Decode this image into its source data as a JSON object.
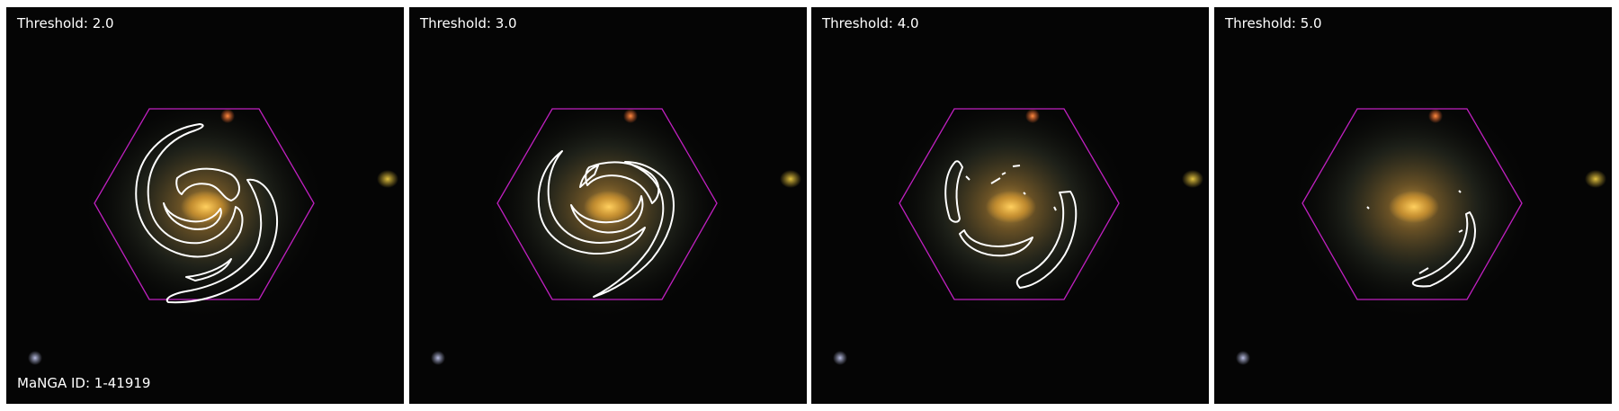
{
  "figure": {
    "manga_id_label": "MaNGA ID: 1-41919",
    "panels": [
      {
        "threshold_label": "Threshold: 2.0"
      },
      {
        "threshold_label": "Threshold: 3.0"
      },
      {
        "threshold_label": "Threshold: 4.0"
      },
      {
        "threshold_label": "Threshold: 5.0"
      }
    ]
  },
  "colors": {
    "background": "#050505",
    "hexagon_outline": "#c020c0",
    "contour": "#ffffff",
    "galaxy_core": "#e8a830",
    "galaxy_halo": "#6a5a3a",
    "star_red": "#ff6a2a",
    "star_yellow": "#c8a830",
    "star_blue": "#9aa0c0"
  },
  "icons": [
    "hexagon-footprint",
    "contour-lines"
  ]
}
